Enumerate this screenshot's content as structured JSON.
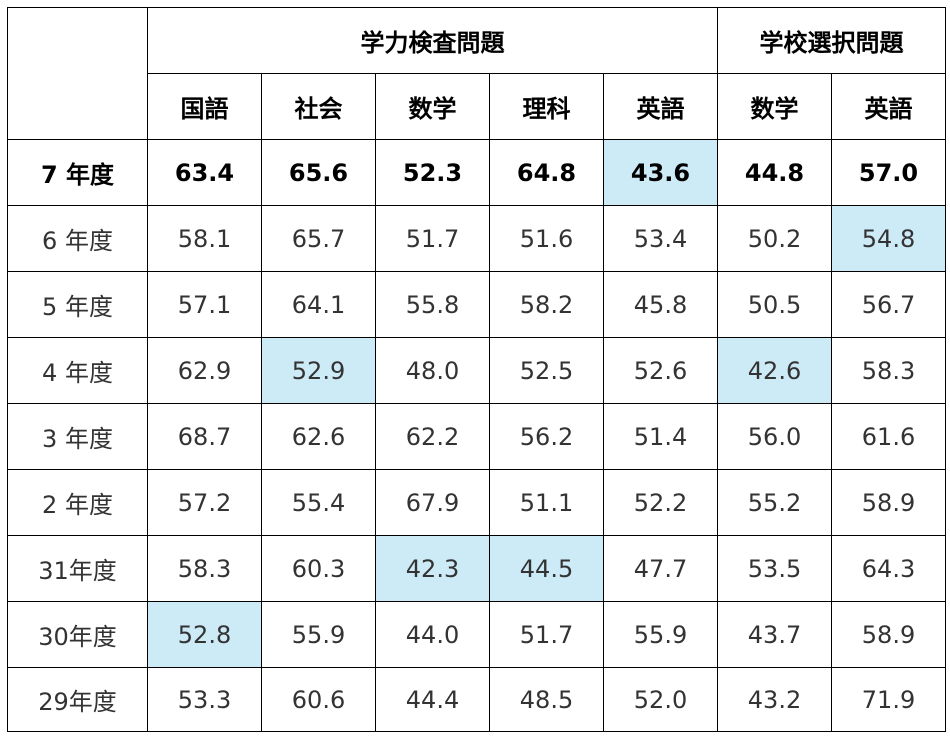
{
  "header": {
    "groups": [
      {
        "label": "学力検査問題",
        "span": 5
      },
      {
        "label": "学校選択問題",
        "span": 2
      }
    ],
    "subjects": [
      "国語",
      "社会",
      "数学",
      "理科",
      "英語",
      "数学",
      "英語"
    ]
  },
  "highlight_color": "#cdeaf7",
  "rows": [
    {
      "year": "7 年度",
      "values": [
        "63.4",
        "65.6",
        "52.3",
        "64.8",
        "43.6",
        "44.8",
        "57.0"
      ],
      "highlight": [
        4
      ],
      "bold": true
    },
    {
      "year": "6 年度",
      "values": [
        "58.1",
        "65.7",
        "51.7",
        "51.6",
        "53.4",
        "50.2",
        "54.8"
      ],
      "highlight": [
        6
      ],
      "bold": false
    },
    {
      "year": "5 年度",
      "values": [
        "57.1",
        "64.1",
        "55.8",
        "58.2",
        "45.8",
        "50.5",
        "56.7"
      ],
      "highlight": [],
      "bold": false
    },
    {
      "year": "4 年度",
      "values": [
        "62.9",
        "52.9",
        "48.0",
        "52.5",
        "52.6",
        "42.6",
        "58.3"
      ],
      "highlight": [
        1,
        5
      ],
      "bold": false
    },
    {
      "year": "3 年度",
      "values": [
        "68.7",
        "62.6",
        "62.2",
        "56.2",
        "51.4",
        "56.0",
        "61.6"
      ],
      "highlight": [],
      "bold": false
    },
    {
      "year": "2 年度",
      "values": [
        "57.2",
        "55.4",
        "67.9",
        "51.1",
        "52.2",
        "55.2",
        "58.9"
      ],
      "highlight": [],
      "bold": false
    },
    {
      "year": "31年度",
      "values": [
        "58.3",
        "60.3",
        "42.3",
        "44.5",
        "47.7",
        "53.5",
        "64.3"
      ],
      "highlight": [
        2,
        3
      ],
      "bold": false
    },
    {
      "year": "30年度",
      "values": [
        "52.8",
        "55.9",
        "44.0",
        "51.7",
        "55.9",
        "43.7",
        "58.9"
      ],
      "highlight": [
        0
      ],
      "bold": false
    },
    {
      "year": "29年度",
      "values": [
        "53.3",
        "60.6",
        "44.4",
        "48.5",
        "52.0",
        "43.2",
        "71.9"
      ],
      "highlight": [],
      "bold": false
    }
  ]
}
